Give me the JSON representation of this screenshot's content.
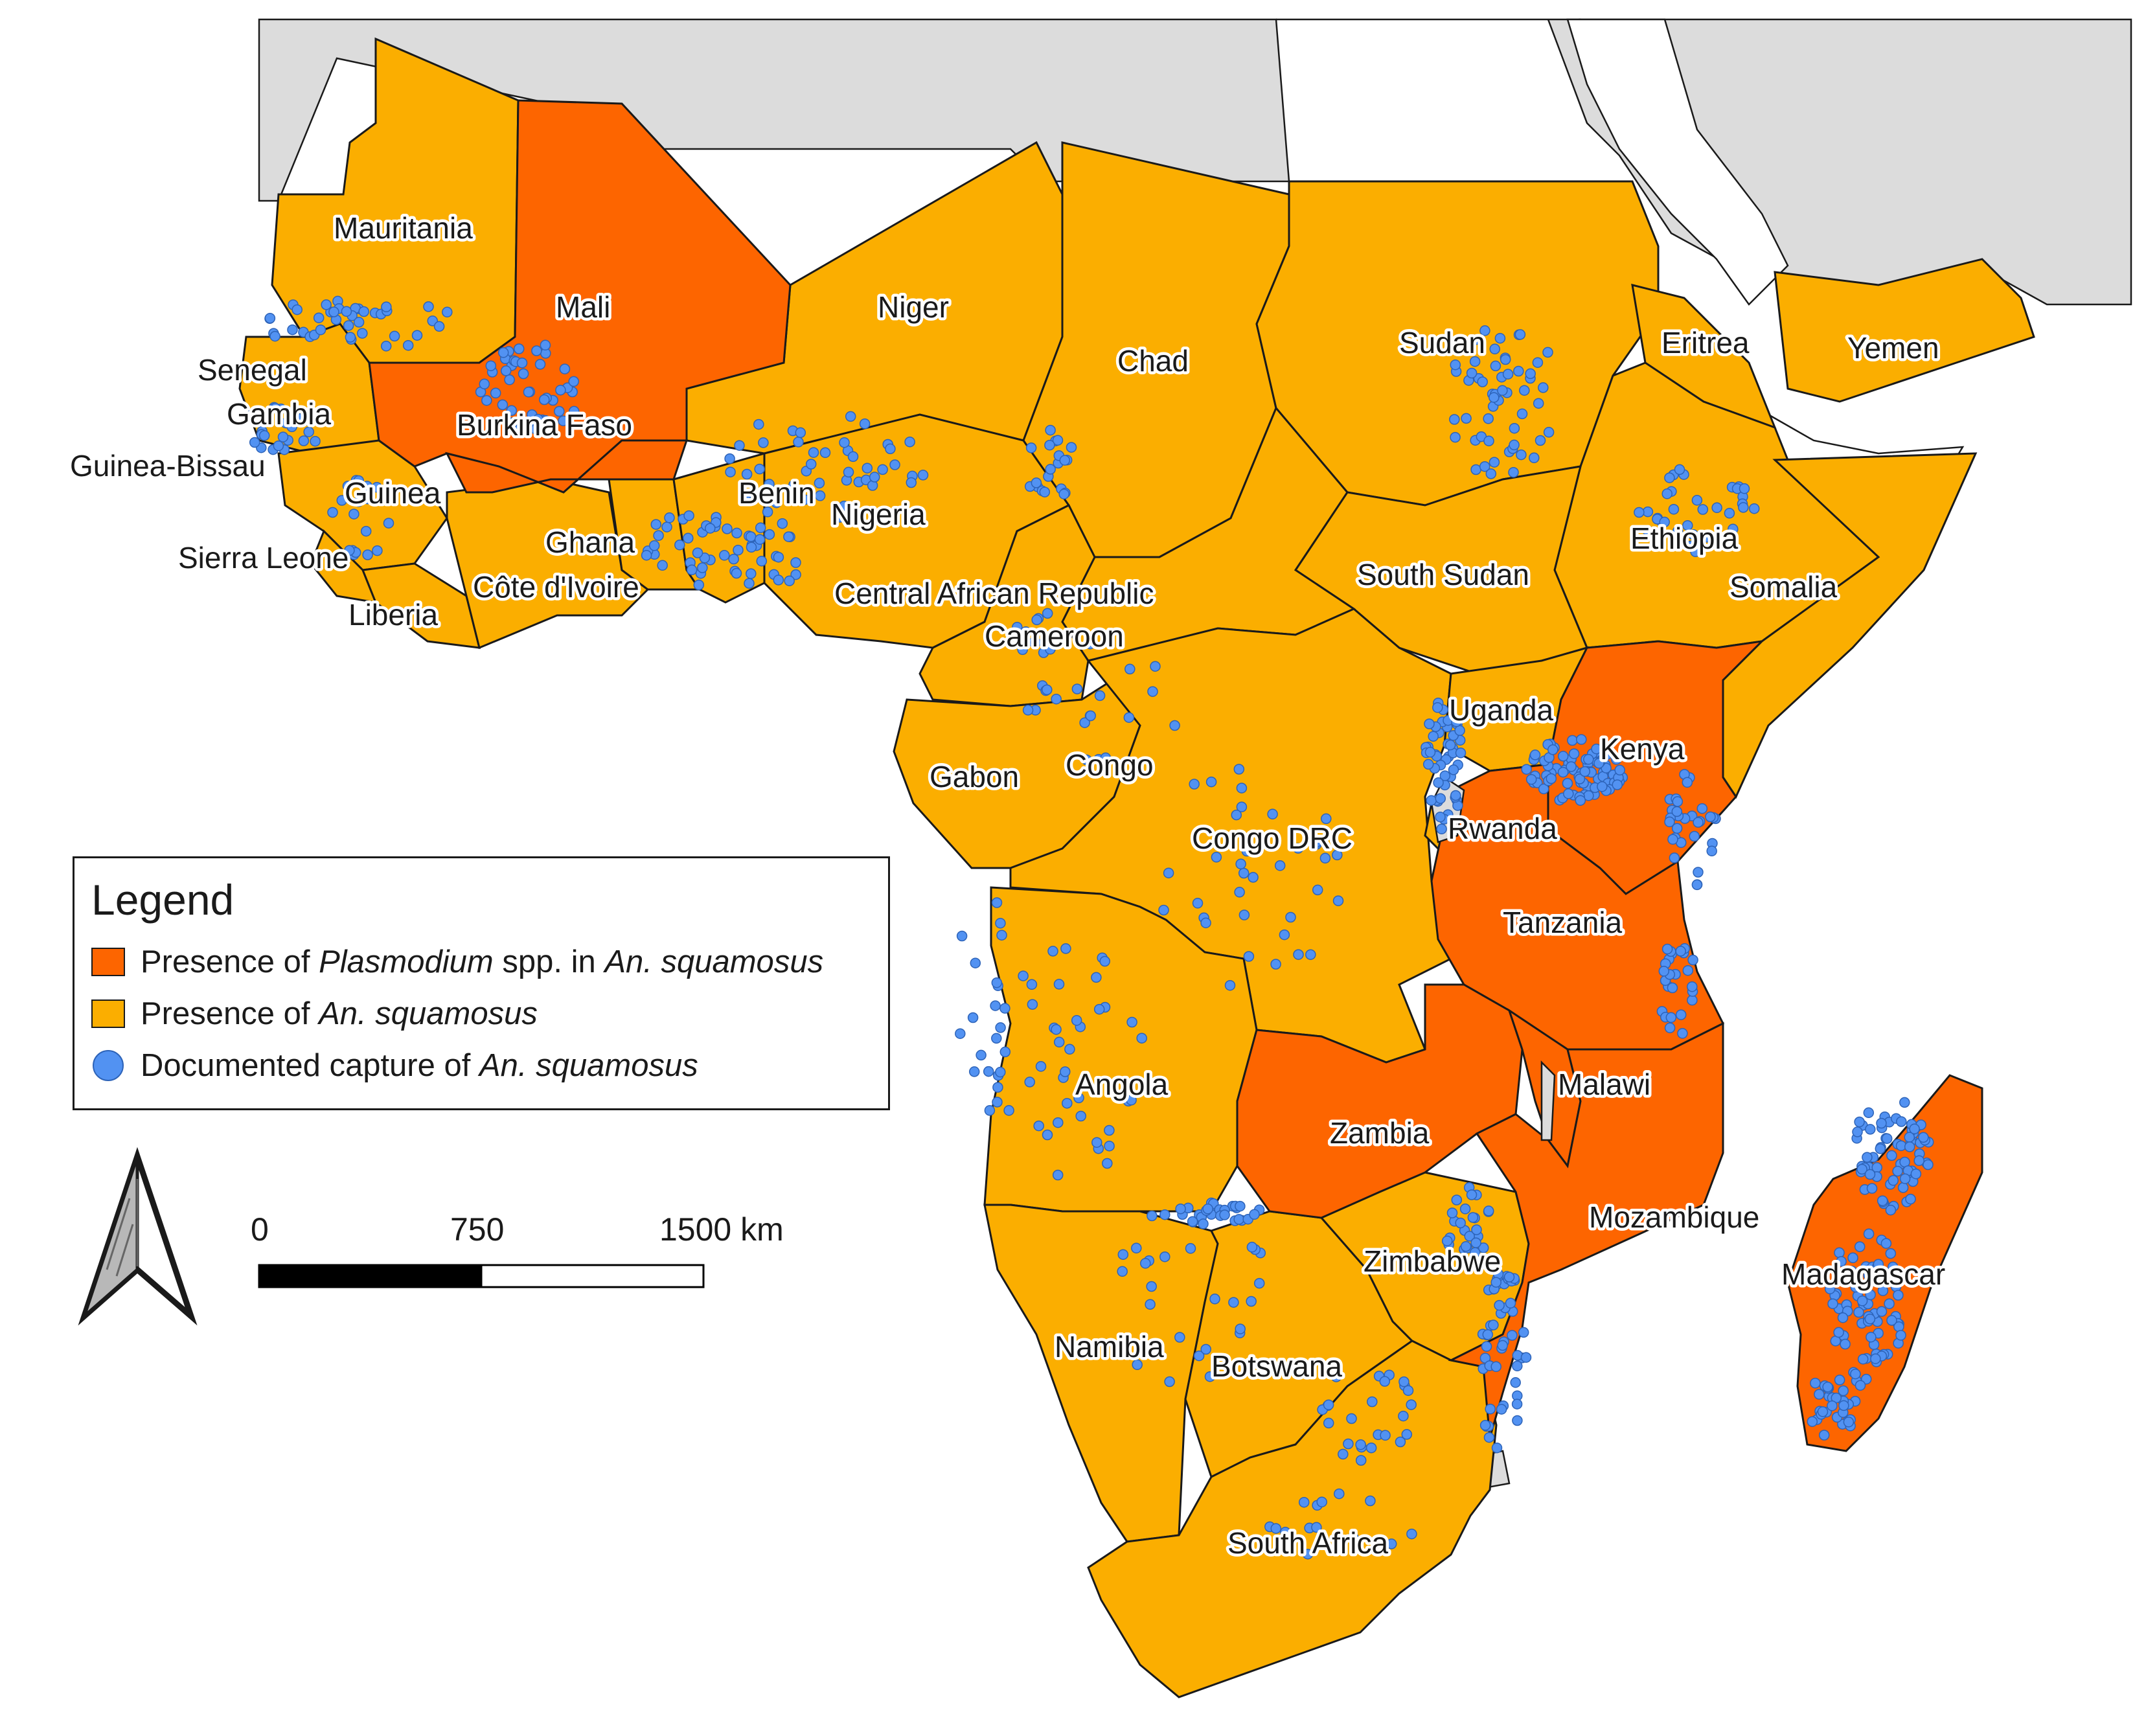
{
  "map": {
    "region": "Sub-Saharan Africa and Arabian Peninsula (Yemen)",
    "colors": {
      "plasmodium_presence": "#fd6500",
      "species_presence": "#fbae00",
      "not_present": "#dcdcdc",
      "capture_point": "#5292f2",
      "border": "#1a1a1a"
    },
    "countries": {
      "plasmodium_presence": [
        "Mali",
        "Burkina Faso",
        "Kenya",
        "Tanzania",
        "Zambia",
        "Malawi",
        "Mozambique",
        "Madagascar"
      ],
      "species_presence": [
        "Mauritania",
        "Senegal",
        "Gambia",
        "Guinea-Bissau",
        "Guinea",
        "Sierra Leone",
        "Liberia",
        "Côte d'Ivoire",
        "Ghana",
        "Benin",
        "Nigeria",
        "Niger",
        "Chad",
        "Sudan",
        "South Sudan",
        "Eritrea",
        "Ethiopia",
        "Somalia",
        "Yemen",
        "Central African Republic",
        "Cameroon",
        "Gabon",
        "Congo",
        "Congo DRC",
        "Uganda",
        "Rwanda",
        "Angola",
        "Namibia",
        "Botswana",
        "Zimbabwe",
        "South Africa"
      ]
    },
    "labels": {
      "mauritania": "Mauritania",
      "mali": "Mali",
      "niger": "Niger",
      "chad": "Chad",
      "sudan": "Sudan",
      "eritrea": "Eritrea",
      "yemen": "Yemen",
      "senegal": "Senegal",
      "gambia": "Gambia",
      "burkina_faso": "Burkina Faso",
      "guinea_bissau": "Guinea-Bissau",
      "guinea": "Guinea",
      "benin": "Benin",
      "nigeria": "Nigeria",
      "ghana": "Ghana",
      "ethiopia": "Ethiopia",
      "sierra_leone": "Sierra Leone",
      "south_sudan": "South Sudan",
      "cote_divoire": "Côte d'Ivoire",
      "car": "Central African Republic",
      "somalia": "Somalia",
      "liberia": "Liberia",
      "cameroon": "Cameroon",
      "uganda": "Uganda",
      "kenya": "Kenya",
      "gabon": "Gabon",
      "congo": "Congo",
      "rwanda": "Rwanda",
      "congo_drc": "Congo DRC",
      "tanzania": "Tanzania",
      "angola": "Angola",
      "malawi": "Malawi",
      "zambia": "Zambia",
      "mozambique": "Mozambique",
      "zimbabwe": "Zimbabwe",
      "madagascar": "Madagascar",
      "namibia": "Namibia",
      "botswana": "Botswana",
      "south_africa": "South Africa"
    }
  },
  "legend": {
    "title": "Legend",
    "items": [
      {
        "prefix": "Presence of ",
        "italic": "Plasmodium",
        "middle": " spp. in ",
        "italic2": "An. squamosus"
      },
      {
        "prefix": "Presence of ",
        "italic": "An. squamosus"
      },
      {
        "prefix": "Documented capture of ",
        "italic": "An. squamosus"
      }
    ]
  },
  "scale_bar": {
    "ticks": [
      "0",
      "750",
      "1500 km"
    ]
  },
  "north_arrow": {
    "icon": "north-arrow-icon"
  }
}
